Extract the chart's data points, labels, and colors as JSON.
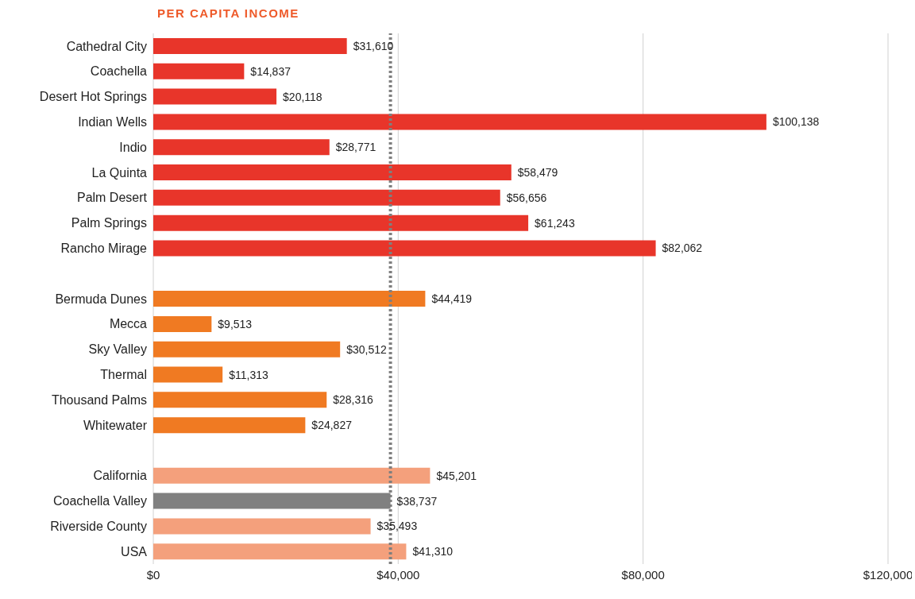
{
  "chart_data": {
    "type": "bar",
    "orientation": "horizontal",
    "title": "PER CAPITA INCOME",
    "categories": [
      "Cathedral City",
      "Coachella",
      "Desert Hot Springs",
      "Indian Wells",
      "Indio",
      "La Quinta",
      "Palm Desert",
      "Palm Springs",
      "Rancho Mirage",
      null,
      "Bermuda Dunes",
      "Mecca",
      "Sky Valley",
      "Thermal",
      "Thousand Palms",
      "Whitewater",
      null,
      "California",
      "Coachella Valley",
      "Riverside County",
      "USA"
    ],
    "values": [
      31610,
      14837,
      20118,
      100138,
      28771,
      58479,
      56656,
      61243,
      82062,
      null,
      44419,
      9513,
      30512,
      11313,
      28316,
      24827,
      null,
      45201,
      38737,
      35493,
      41310
    ],
    "colors": [
      "#e8352a",
      "#e8352a",
      "#e8352a",
      "#e8352a",
      "#e8352a",
      "#e8352a",
      "#e8352a",
      "#e8352a",
      "#e8352a",
      "#e8352a",
      "#f07a22",
      "#f07a22",
      "#f07a22",
      "#f07a22",
      "#f07a22",
      "#f07a22",
      "#f07a22",
      "#f4a07c",
      "#808080",
      "#f4a07c",
      "#f4a07c"
    ],
    "value_labels": [
      "$31,610",
      "$14,837",
      "$20,118",
      "$100,138",
      "$28,771",
      "$58,479",
      "$56,656",
      "$61,243",
      "$82,062",
      null,
      "$44,419",
      "$9,513",
      "$30,512",
      "$11,313",
      "$28,316",
      "$24,827",
      null,
      "$45,201",
      "$38,737",
      "$35,493",
      "$41,310"
    ],
    "xlim": [
      0,
      120000
    ],
    "xticks": [
      {
        "value": 0,
        "label": "$0"
      },
      {
        "value": 40000,
        "label": "$40,000"
      },
      {
        "value": 80000,
        "label": "$80,000"
      },
      {
        "value": 120000,
        "label": "$120,000"
      }
    ],
    "grid": "x",
    "ref_lines": [
      {
        "axis": "x",
        "value": 38737,
        "color": "#7f7f7f",
        "line_style": "dotted"
      }
    ]
  }
}
